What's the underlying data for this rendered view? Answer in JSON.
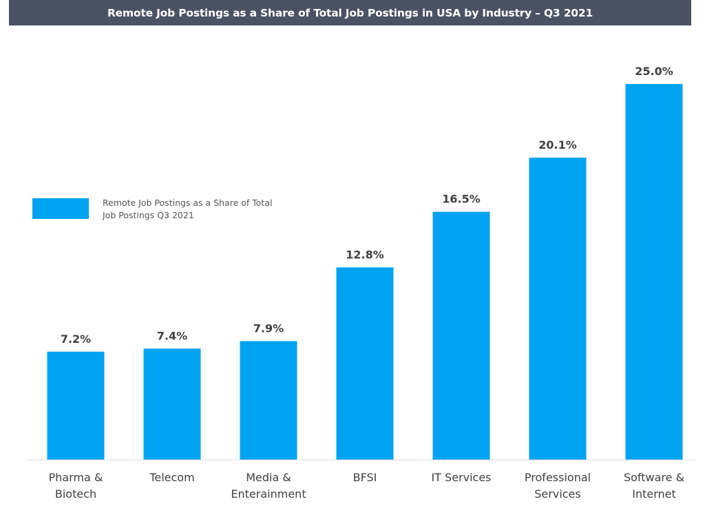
{
  "title": "Remote Job Postings as a Share of Total Job Postings in USA by Industry – Q3 2021",
  "colors": {
    "bar": "#00a3f0",
    "title_bg": "#4a5263",
    "text": "#404040",
    "axis": "#d9d9d9"
  },
  "chart_data": {
    "type": "bar",
    "title": "Remote Job Postings as a Share of Total Job Postings in USA by Industry – Q3 2021",
    "categories": [
      [
        "Pharma &",
        "Biotech"
      ],
      [
        "Telecom"
      ],
      [
        "Media &",
        "Enterainment"
      ],
      [
        "BFSI"
      ],
      [
        "IT Services"
      ],
      [
        "Professional",
        "Services"
      ],
      [
        "Software &",
        "Internet"
      ]
    ],
    "series": [
      {
        "name": "Remote Job Postings as a Share of Total Job Postings Q3 2021",
        "values": [
          7.2,
          7.4,
          7.9,
          12.8,
          16.5,
          20.1,
          25.0
        ]
      }
    ],
    "data_labels": [
      "7.2%",
      "7.4%",
      "7.9%",
      "12.8%",
      "16.5%",
      "20.1%",
      "25.0%"
    ],
    "legend": {
      "lines": [
        "Remote Job Postings as a Share of Total",
        "Job Postings Q3 2021"
      ],
      "position": "left"
    },
    "ylim": [
      0,
      25.0
    ],
    "grid": false,
    "xlabel": "",
    "ylabel": ""
  }
}
